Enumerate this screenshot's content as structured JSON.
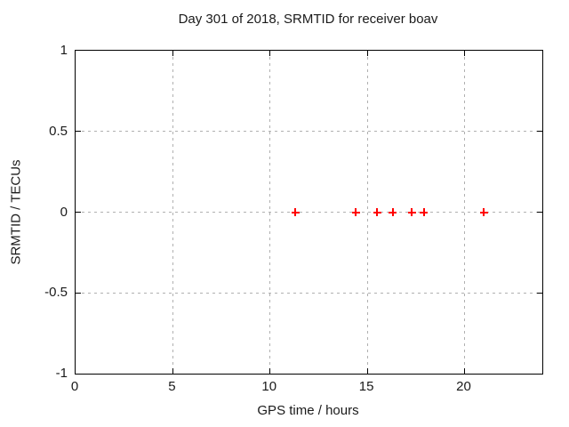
{
  "colors": {
    "background": "#ffffff",
    "axis": "#000000",
    "grid": "#b0b0b0",
    "text": "#1a1a1a",
    "marker": "#ff0000"
  },
  "chart_data": {
    "type": "scatter",
    "title": "Day 301 of 2018, SRMTID for receiver boav",
    "xlabel": "GPS time / hours",
    "ylabel": "SRMTID / TECUs",
    "xlim": [
      0,
      24
    ],
    "ylim": [
      -1,
      1
    ],
    "grid": true,
    "legend": "none",
    "xticks": {
      "values": [
        0,
        5,
        10,
        15,
        20
      ],
      "labels": [
        "0",
        "5",
        "10",
        "15",
        "20"
      ]
    },
    "yticks": {
      "values": [
        -1,
        -0.5,
        0,
        0.5,
        1
      ],
      "labels": [
        "-1",
        "-0.5",
        "0",
        "0.5",
        "1"
      ]
    },
    "series": [
      {
        "name": "SRMTID",
        "marker": "plus",
        "color": "#ff0000",
        "points": [
          [
            11.3,
            0
          ],
          [
            14.4,
            0
          ],
          [
            15.5,
            0
          ],
          [
            16.3,
            0
          ],
          [
            17.3,
            0
          ],
          [
            17.9,
            0
          ],
          [
            21.0,
            0
          ]
        ]
      }
    ]
  }
}
